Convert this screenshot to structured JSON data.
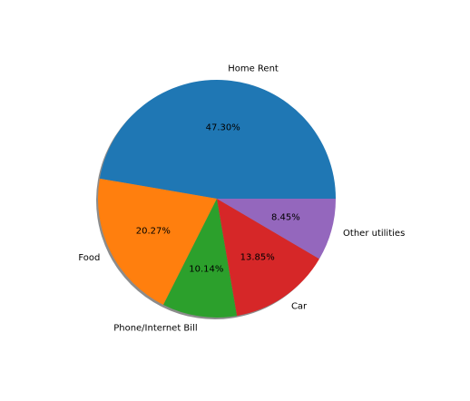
{
  "chart_data": {
    "type": "pie",
    "title": "",
    "slices": [
      {
        "label": "Home Rent",
        "value": 47.3,
        "pct_label": "47.30%",
        "color": "#1f77b4"
      },
      {
        "label": "Food",
        "value": 20.27,
        "pct_label": "20.27%",
        "color": "#ff7f0e"
      },
      {
        "label": "Phone/Internet Bill",
        "value": 10.14,
        "pct_label": "10.14%",
        "color": "#2ca02c"
      },
      {
        "label": "Car",
        "value": 13.85,
        "pct_label": "13.85%",
        "color": "#d62728"
      },
      {
        "label": "Other utilities",
        "value": 8.45,
        "pct_label": "8.45%",
        "color": "#9467bd"
      }
    ],
    "start_angle_deg": 0,
    "direction": "counterclockwise",
    "shadow": true,
    "legend": "none"
  }
}
